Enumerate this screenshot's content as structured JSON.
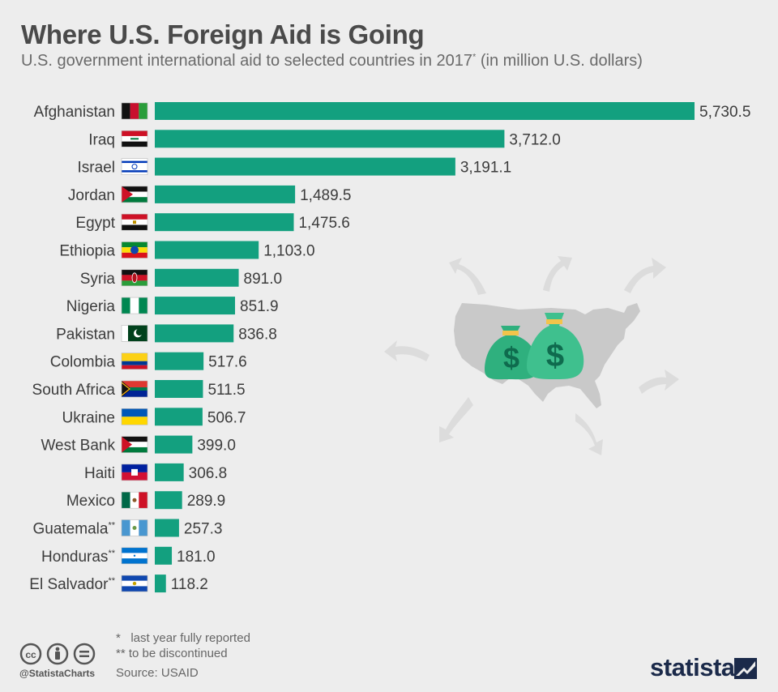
{
  "title": "Where U.S. Foreign Aid is Going",
  "subtitle": "U.S. government international aid to selected countries in 2017",
  "subtitle_mark": "*",
  "subtitle_units": " (in million U.S. dollars)",
  "colors": {
    "bar": "#13a07f",
    "text": "#3c3c3c",
    "background": "#ededed",
    "map": "#c8c8c8",
    "arrow": "#dcdcdc",
    "bag": "#3fc08e"
  },
  "chart_data": {
    "type": "bar",
    "orientation": "horizontal",
    "title": "Where U.S. Foreign Aid is Going",
    "xlabel": "",
    "ylabel": "",
    "categories": [
      "Afghanistan",
      "Iraq",
      "Israel",
      "Jordan",
      "Egypt",
      "Ethiopia",
      "Syria",
      "Nigeria",
      "Pakistan",
      "Colombia",
      "South Africa",
      "Ukraine",
      "West Bank",
      "Haiti",
      "Mexico",
      "Guatemala",
      "Honduras",
      "El Salvador"
    ],
    "category_marks": [
      "",
      "",
      "",
      "",
      "",
      "",
      "",
      "",
      "",
      "",
      "",
      "",
      "",
      "",
      "",
      "**",
      "**",
      "**"
    ],
    "values": [
      5730.5,
      3712.0,
      3191.1,
      1489.5,
      1475.6,
      1103.0,
      891.0,
      851.9,
      836.8,
      517.6,
      511.5,
      506.7,
      399.0,
      306.8,
      289.9,
      257.3,
      181.0,
      118.2
    ],
    "value_labels": [
      "5,730.5",
      "3,712.0",
      "3,191.1",
      "1,489.5",
      "1,475.6",
      "1,103.0",
      "891.0",
      "851.9",
      "836.8",
      "517.6",
      "511.5",
      "506.7",
      "399.0",
      "306.8",
      "289.9",
      "257.3",
      "181.0",
      "118.2"
    ],
    "flags": [
      "afghanistan-flag-icon",
      "iraq-flag-icon",
      "israel-flag-icon",
      "jordan-flag-icon",
      "egypt-flag-icon",
      "ethiopia-flag-icon",
      "syria-flag-icon",
      "nigeria-flag-icon",
      "pakistan-flag-icon",
      "colombia-flag-icon",
      "south-africa-flag-icon",
      "ukraine-flag-icon",
      "west-bank-flag-icon",
      "haiti-flag-icon",
      "mexico-flag-icon",
      "guatemala-flag-icon",
      "honduras-flag-icon",
      "el-salvador-flag-icon"
    ],
    "xlim": [
      0,
      5730.5
    ],
    "grid": false
  },
  "footer": {
    "note1": "*   last year fully reported",
    "note2": "** to be discontinued",
    "source": "Source: USAID",
    "handle": "@StatistaCharts",
    "logo": "statista"
  }
}
